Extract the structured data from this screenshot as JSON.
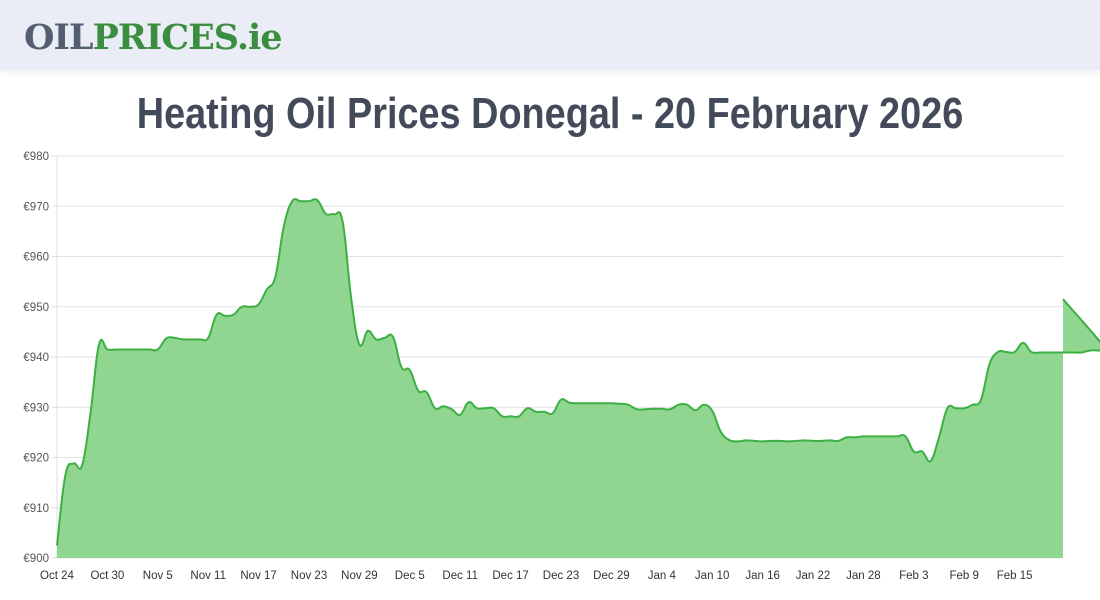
{
  "header": {
    "logo": {
      "part1": "OIL",
      "part2": "PRICES.ie"
    }
  },
  "page": {
    "title": "Heating Oil Prices Donegal - 20 February 2026"
  },
  "colors": {
    "line": "#3cb043",
    "fill": "#90d590",
    "grid": "#e0e0e0",
    "logo_dark": "#545e70",
    "logo_green": "#3b8e3f",
    "title": "#434b5a"
  },
  "chart_data": {
    "type": "area",
    "title": "Heating Oil Prices Donegal - 20 February 2026",
    "xlabel": "",
    "ylabel": "",
    "ylim": [
      900,
      980
    ],
    "y_ticks": [
      "€900",
      "€910",
      "€920",
      "€930",
      "€940",
      "€950",
      "€960",
      "€970",
      "€980"
    ],
    "x_ticks": [
      "Oct 24",
      "Oct 30",
      "Nov 5",
      "Nov 11",
      "Nov 17",
      "Nov 23",
      "Nov 29",
      "Dec 5",
      "Dec 11",
      "Dec 17",
      "Dec 23",
      "Dec 29",
      "Jan 4",
      "Jan 10",
      "Jan 16",
      "Jan 22",
      "Jan 28",
      "Feb 3",
      "Feb 9",
      "Feb 15"
    ],
    "grid": true,
    "legend": "none",
    "currency": "€",
    "x_start": "Oct 24",
    "x_end": "Feb 20",
    "values": [
      902.5,
      916.5,
      918.8,
      918.5,
      929,
      942.5,
      941.5,
      941.5,
      941.5,
      941.5,
      941.5,
      941.5,
      941.5,
      943.7,
      943.8,
      943.5,
      943.5,
      943.5,
      943.8,
      948.4,
      948.2,
      948.4,
      950,
      950,
      950.5,
      953.5,
      956,
      966,
      971,
      971,
      971,
      971.2,
      968.5,
      968.4,
      967,
      952,
      942.5,
      945.2,
      943.5,
      943.8,
      944,
      938,
      937.4,
      933.3,
      933,
      929.8,
      930.2,
      929.6,
      928.5,
      931,
      929.8,
      929.8,
      929.8,
      928.2,
      928.2,
      928.2,
      929.8,
      929.1,
      929.1,
      928.8,
      931.5,
      930.9,
      930.8,
      930.8,
      930.8,
      930.8,
      930.8,
      930.7,
      930.5,
      929.6,
      929.6,
      929.7,
      929.7,
      929.6,
      930.5,
      930.5,
      929.4,
      930.5,
      929.3,
      925.2,
      923.5,
      923.2,
      923.4,
      923.3,
      923.2,
      923.3,
      923.3,
      923.2,
      923.3,
      923.4,
      923.3,
      923.3,
      923.4,
      923.3,
      924,
      924,
      924.2,
      924.2,
      924.2,
      924.2,
      924.2,
      924.2,
      921.2,
      921.2,
      919.3,
      924,
      929.8,
      929.8,
      929.8,
      930.5,
      931.5,
      938.5,
      941,
      941,
      941,
      942.8,
      941,
      940.9,
      940.9,
      940.9,
      940.9,
      940.9,
      940.9,
      941.3,
      941.3,
      941.3,
      951.5
    ]
  }
}
